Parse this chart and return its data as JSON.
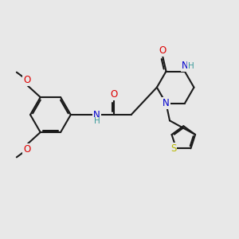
{
  "bg_color": "#e8e8e8",
  "bond_color": "#1a1a1a",
  "bond_width": 1.5,
  "dbo": 0.055,
  "atom_colors": {
    "C": "#1a1a1a",
    "N": "#0000cc",
    "O": "#dd0000",
    "S": "#b8b800",
    "H": "#3a9a9a"
  },
  "font_size": 8.5,
  "fig_size": [
    3.0,
    3.0
  ],
  "dpi": 100
}
